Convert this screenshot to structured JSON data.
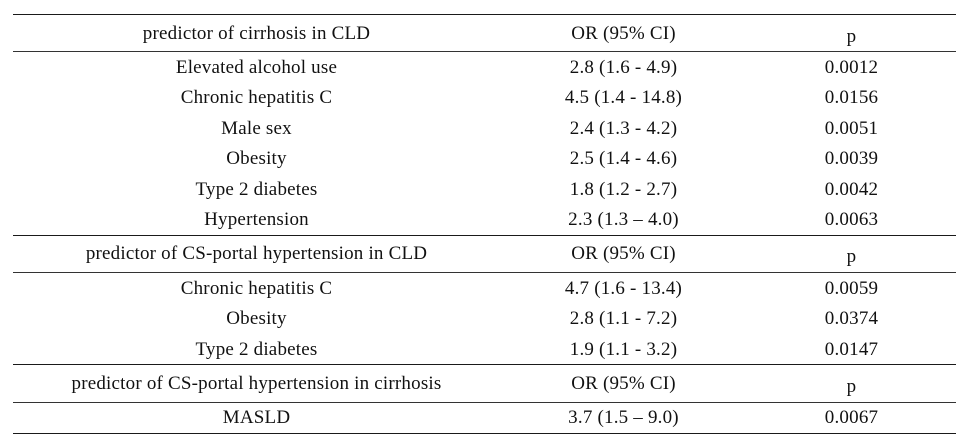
{
  "sections": [
    {
      "header": {
        "predictor": "predictor of cirrhosis in CLD",
        "or": "OR (95% CI)",
        "p": "p"
      },
      "rows": [
        {
          "predictor": "Elevated alcohol use",
          "or": "2.8 (1.6 - 4.9)",
          "p": "0.0012"
        },
        {
          "predictor": "Chronic hepatitis C",
          "or": "4.5 (1.4 - 14.8)",
          "p": "0.0156"
        },
        {
          "predictor": "Male sex",
          "or": "2.4 (1.3 - 4.2)",
          "p": "0.0051"
        },
        {
          "predictor": "Obesity",
          "or": "2.5 (1.4 - 4.6)",
          "p": "0.0039"
        },
        {
          "predictor": "Type 2 diabetes",
          "or": "1.8 (1.2 - 2.7)",
          "p": "0.0042"
        },
        {
          "predictor": "Hypertension",
          "or": "2.3 (1.3 – 4.0)",
          "p": "0.0063"
        }
      ]
    },
    {
      "header": {
        "predictor": "predictor of CS-portal hypertension in CLD",
        "or": "OR (95% CI)",
        "p": "p"
      },
      "rows": [
        {
          "predictor": "Chronic hepatitis C",
          "or": "4.7 (1.6 - 13.4)",
          "p": "0.0059"
        },
        {
          "predictor": "Obesity",
          "or": "2.8 (1.1 - 7.2)",
          "p": "0.0374"
        },
        {
          "predictor": "Type 2 diabetes",
          "or": "1.9 (1.1 - 3.2)",
          "p": "0.0147"
        }
      ]
    },
    {
      "header": {
        "predictor": "predictor of CS-portal hypertension in cirrhosis",
        "or": "OR (95% CI)",
        "p": "p"
      },
      "rows": [
        {
          "predictor": "MASLD",
          "or": "3.7 (1.5 – 9.0)",
          "p": "0.0067"
        }
      ]
    }
  ]
}
